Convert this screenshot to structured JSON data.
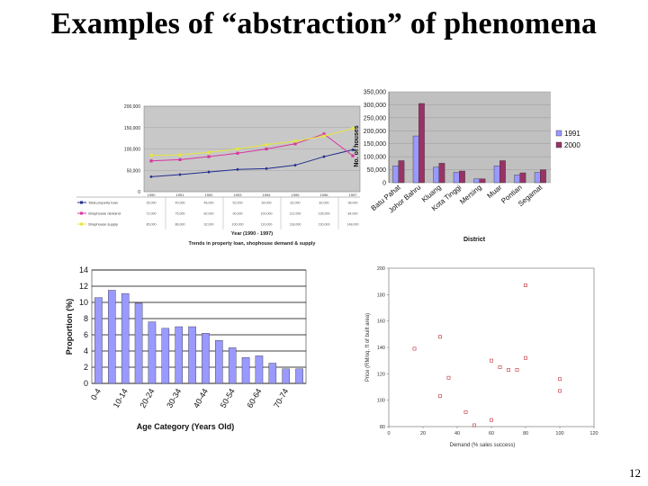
{
  "slide": {
    "title": "Examples of “abstraction” of phenomena",
    "number": "12"
  },
  "chart_data": [
    {
      "type": "line",
      "caption": "Trends in property loan, shophouse demand & supply",
      "xlabel": "Year (1990 - 1997)",
      "x": [
        "1990",
        "1991",
        "1992",
        "1993",
        "1994",
        "1995",
        "1996",
        "1997"
      ],
      "ylim": [
        0,
        200000
      ],
      "yticks": [
        "0",
        "50,000",
        "100,000",
        "150,000",
        "200,000"
      ],
      "series": [
        {
          "name": "Total property loan",
          "color": "#1f2d8a",
          "values": [
            35000,
            40000,
            46000,
            52000,
            54000,
            62000,
            82000,
            98000
          ]
        },
        {
          "name": "Shophouse demand",
          "color": "#d6359f",
          "values": [
            72000,
            75000,
            82000,
            90000,
            100000,
            112000,
            135000,
            84000
          ]
        },
        {
          "name": "Shophouse supply",
          "color": "#e6e63a",
          "values": [
            85000,
            86000,
            92000,
            100000,
            110000,
            118000,
            130000,
            148000
          ]
        }
      ]
    },
    {
      "type": "bar",
      "xlabel": "District",
      "ylabel": "No. of houses",
      "ylim": [
        0,
        350000
      ],
      "yticks": [
        "0",
        "50,000",
        "100,000",
        "150,000",
        "200,000",
        "250,000",
        "300,000",
        "350,000"
      ],
      "categories": [
        "Batu Pahat",
        "Johor Bahru",
        "Kluang",
        "Kota Tinggi",
        "Mersing",
        "Muar",
        "Pontian",
        "Segamat"
      ],
      "series": [
        {
          "name": "1991",
          "color": "#9999ff",
          "values": [
            65000,
            180000,
            60000,
            40000,
            15000,
            65000,
            30000,
            40000
          ]
        },
        {
          "name": "2000",
          "color": "#993366",
          "values": [
            85000,
            305000,
            75000,
            45000,
            15000,
            85000,
            38000,
            50000
          ]
        }
      ]
    },
    {
      "type": "bar",
      "xlabel": "Age Category (Years Old)",
      "ylabel": "Proportion (%)",
      "ylim": [
        0,
        14
      ],
      "yticks": [
        "0",
        "2",
        "4",
        "6",
        "8",
        "10",
        "12",
        "14"
      ],
      "categories": [
        "0-4",
        "",
        "10-14",
        "",
        "20-24",
        "",
        "30-34",
        "",
        "40-44",
        "",
        "50-54",
        "",
        "60-64",
        "",
        "70-74",
        ""
      ],
      "values": [
        10.6,
        11.5,
        11.1,
        9.9,
        7.6,
        6.8,
        7.0,
        7.0,
        6.2,
        5.3,
        4.4,
        3.2,
        3.4,
        2.5,
        1.8,
        1.8
      ]
    },
    {
      "type": "scatter",
      "xlabel": "Demand (% sales success)",
      "ylabel": "Price (RM/sq. ft of built area)",
      "xlim": [
        0,
        120
      ],
      "ylim": [
        80,
        200
      ],
      "xticks": [
        "0",
        "20",
        "40",
        "60",
        "80",
        "100",
        "120"
      ],
      "yticks": [
        "80",
        "100",
        "120",
        "140",
        "160",
        "180",
        "200"
      ],
      "points": [
        [
          15,
          139
        ],
        [
          30,
          148
        ],
        [
          30,
          103
        ],
        [
          35,
          117
        ],
        [
          45,
          91
        ],
        [
          50,
          81
        ],
        [
          60,
          130
        ],
        [
          60,
          85
        ],
        [
          65,
          125
        ],
        [
          70,
          123
        ],
        [
          75,
          123
        ],
        [
          80,
          187
        ],
        [
          80,
          132
        ],
        [
          100,
          116
        ],
        [
          100,
          107
        ]
      ]
    }
  ]
}
